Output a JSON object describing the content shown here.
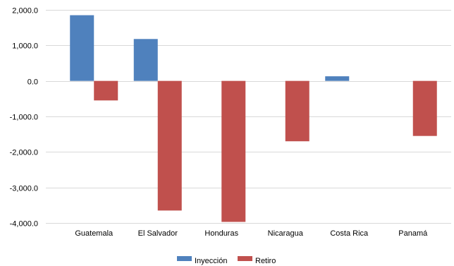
{
  "chart_data": {
    "type": "bar",
    "title": "",
    "xlabel": "",
    "ylabel": "",
    "categories": [
      "Guatemala",
      "El Salvador",
      "Honduras",
      "Nicaragua",
      "Costa Rica",
      "Panamá"
    ],
    "series": [
      {
        "name": "Inyección",
        "color": "#4f81bd",
        "values": [
          1850,
          1180,
          0,
          0,
          130,
          0
        ]
      },
      {
        "name": "Retiro",
        "color": "#c0504d",
        "values": [
          -550,
          -3650,
          -3970,
          -1700,
          0,
          -1550
        ]
      }
    ],
    "ylim": [
      -4000,
      2000
    ],
    "yticks": [
      2000,
      1000,
      0,
      -1000,
      -2000,
      -3000,
      -4000
    ],
    "ytick_labels": [
      "2,000.0",
      "1,000.0",
      "0.0",
      "-1,000.0",
      "-2,000.0",
      "-3,000.0",
      "-4,000.0"
    ],
    "grid": true,
    "legend_position": "bottom"
  }
}
